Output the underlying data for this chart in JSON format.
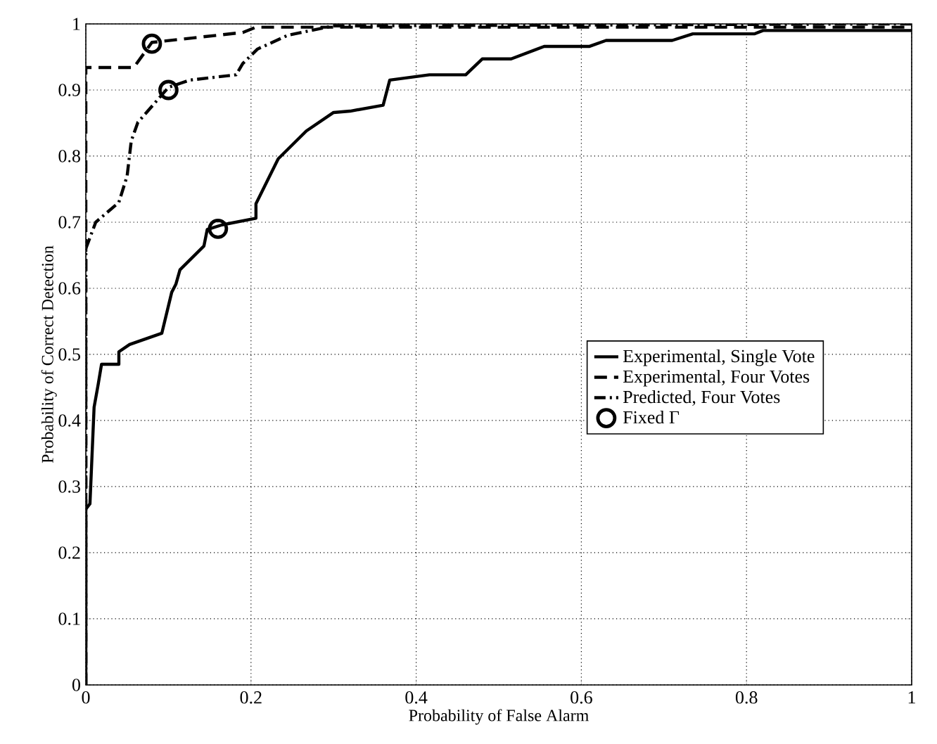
{
  "chart_data": {
    "type": "line",
    "xlabel": "Probability of False Alarm",
    "ylabel": "Probability of Correct Detection",
    "xlim": [
      0,
      1
    ],
    "ylim": [
      0,
      1
    ],
    "xticks": [
      0,
      0.2,
      0.4,
      0.6,
      0.8,
      1
    ],
    "yticks": [
      0,
      0.1,
      0.2,
      0.3,
      0.4,
      0.5,
      0.6,
      0.7,
      0.8,
      0.9,
      1
    ],
    "grid": true,
    "legend": "right",
    "series": [
      {
        "name": "Experimental, Single Vote",
        "color": "#000000",
        "line_style": "solid",
        "x": [
          0,
          0,
          0.005,
          0.01,
          0.015,
          0.019,
          0.04,
          0.04,
          0.053,
          0.092,
          0.104,
          0.109,
          0.114,
          0.143,
          0.147,
          0.165,
          0.206,
          0.206,
          0.233,
          0.267,
          0.3,
          0.32,
          0.36,
          0.368,
          0.416,
          0.46,
          0.48,
          0.515,
          0.555,
          0.61,
          0.63,
          0.71,
          0.735,
          0.81,
          0.82,
          1
        ],
        "values": [
          0,
          0.266,
          0.274,
          0.42,
          0.455,
          0.485,
          0.485,
          0.504,
          0.515,
          0.532,
          0.594,
          0.606,
          0.628,
          0.664,
          0.689,
          0.696,
          0.706,
          0.728,
          0.796,
          0.838,
          0.866,
          0.868,
          0.877,
          0.915,
          0.923,
          0.923,
          0.947,
          0.947,
          0.966,
          0.966,
          0.975,
          0.975,
          0.985,
          0.985,
          0.99,
          0.99
        ]
      },
      {
        "name": "Experimental, Four Votes",
        "color": "#000000",
        "line_style": "dashed",
        "x": [
          0,
          0,
          0.058,
          0.08,
          0.19,
          0.206,
          1
        ],
        "values": [
          0,
          0.934,
          0.934,
          0.972,
          0.987,
          0.995,
          0.995
        ]
      },
      {
        "name": "Predicted, Four Votes",
        "color": "#000000",
        "line_style": "dashdot",
        "x": [
          0,
          0,
          0.012,
          0.04,
          0.05,
          0.055,
          0.063,
          0.1,
          0.126,
          0.182,
          0.19,
          0.208,
          0.245,
          0.3,
          1
        ],
        "values": [
          0,
          0.66,
          0.7,
          0.73,
          0.77,
          0.823,
          0.851,
          0.904,
          0.915,
          0.923,
          0.94,
          0.962,
          0.983,
          0.997,
          1
        ]
      },
      {
        "name": "Fixed Γ",
        "type": "scatter",
        "marker": "circle",
        "color": "#000000",
        "x": [
          0.08,
          0.1,
          0.16
        ],
        "values": [
          0.97,
          0.9,
          0.69
        ]
      }
    ]
  }
}
